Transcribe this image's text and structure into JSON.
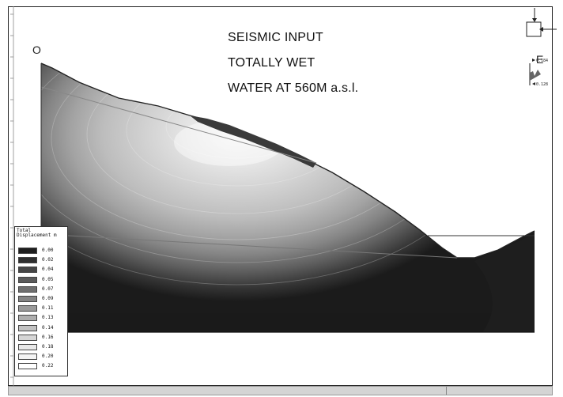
{
  "diagram": {
    "headline": [
      "SEISMIC INPUT",
      "TOTALLY WET",
      "WATER AT 560M a.s.l."
    ],
    "corner_left": "O",
    "corner_right": "E",
    "load_values": [
      "0.184",
      "0.128"
    ],
    "legend": {
      "title": "Total Displacement m",
      "levels": [
        "0.00",
        "0.02",
        "0.04",
        "0.05",
        "0.07",
        "0.09",
        "0.11",
        "0.13",
        "0.14",
        "0.16",
        "0.18",
        "0.20",
        "0.22"
      ],
      "colors": [
        "#1e1e1e",
        "#2e2e2e",
        "#454545",
        "#5a5a5a",
        "#6f6f6f",
        "#848484",
        "#9a9a9a",
        "#aeaeae",
        "#c2c2c2",
        "#d6d6d6",
        "#e8e8e8",
        "#f4f4f4",
        "#ffffff"
      ]
    }
  }
}
